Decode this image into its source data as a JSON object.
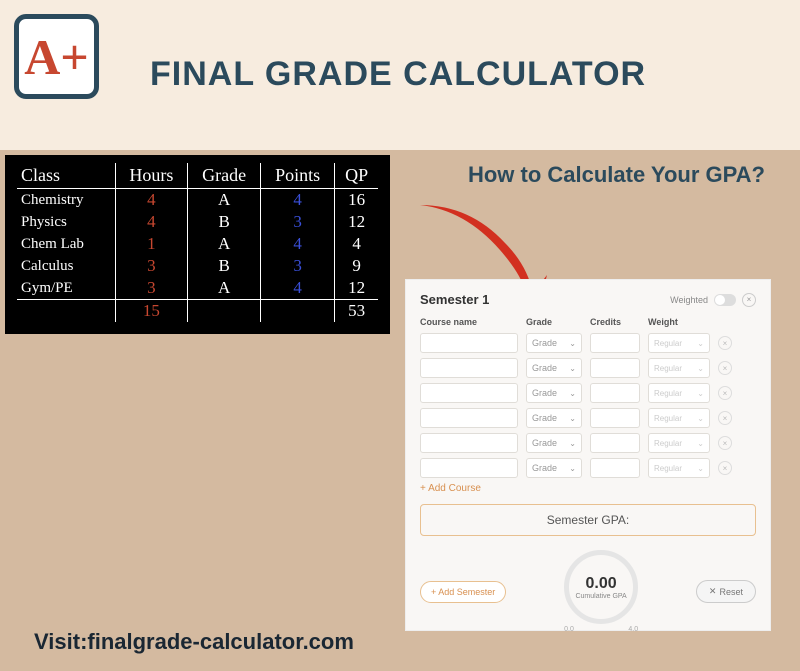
{
  "header": {
    "logo": "A+",
    "title": "FINAL GRADE CALCULATOR"
  },
  "blackboard": {
    "columns": [
      "Class",
      "Hours",
      "Grade",
      "Points",
      "QP"
    ],
    "rows": [
      {
        "class": "Chemistry",
        "hours": "4",
        "grade": "A",
        "points": "4",
        "qp": "16"
      },
      {
        "class": "Physics",
        "hours": "4",
        "grade": "B",
        "points": "3",
        "qp": "12"
      },
      {
        "class": "Chem Lab",
        "hours": "1",
        "grade": "A",
        "points": "4",
        "qp": "4"
      },
      {
        "class": "Calculus",
        "hours": "3",
        "grade": "B",
        "points": "3",
        "qp": "9"
      },
      {
        "class": "Gym/PE",
        "hours": "3",
        "grade": "A",
        "points": "4",
        "qp": "12"
      }
    ],
    "total_hours": "15",
    "total_qp": "53"
  },
  "howto": "How to Calculate Your GPA?",
  "calculator": {
    "semester_title": "Semester 1",
    "weighted_label": "Weighted",
    "cols": {
      "name": "Course name",
      "grade": "Grade",
      "credits": "Credits",
      "weight": "Weight"
    },
    "grade_placeholder": "Grade",
    "weight_placeholder": "Regular",
    "row_count": 6,
    "add_course": "+ Add Course",
    "semester_gpa_label": "Semester GPA:",
    "add_semester": "+ Add Semester",
    "gauge_value": "0.00",
    "gauge_label": "Cumulative GPA",
    "gauge_min": "0.0",
    "gauge_max": "4.0",
    "reset": "Reset",
    "reset_icon": "✕"
  },
  "footer": "Visit:finalgrade-calculator.com",
  "colors": {
    "header_bg": "#f7ecdf",
    "body_bg": "#d4baa0",
    "title_color": "#2b4a5c",
    "logo_red": "#c74730",
    "arrow_red": "#d23020",
    "bb_red": "#c74730",
    "bb_blue": "#3a4fd8",
    "accent": "#e8c090"
  }
}
